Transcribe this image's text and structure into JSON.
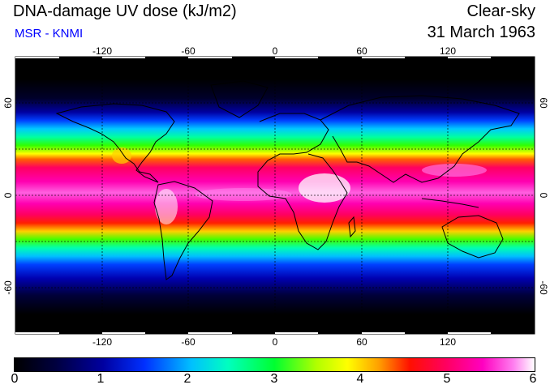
{
  "header": {
    "title": "DNA-damage UV dose (kJ/m2)",
    "subtitle": "MSR - KNMI",
    "sky_condition": "Clear-sky",
    "date": "31 March 1963"
  },
  "map": {
    "lon_ticks": [
      -120,
      -60,
      0,
      60,
      120
    ],
    "lon_labels": [
      "-120",
      "-60",
      "0",
      "60",
      "120"
    ],
    "lat_ticks": [
      60,
      0,
      -60
    ],
    "lat_labels": [
      "60",
      "0",
      "-60"
    ],
    "lon_range": [
      -180,
      180
    ],
    "lat_range": [
      -90,
      90
    ],
    "gridline_lats": [
      60,
      30,
      0,
      -30,
      -60
    ],
    "gridline_lons": [
      -120,
      -60,
      0,
      60,
      120
    ]
  },
  "colorbar": {
    "labels": [
      "0",
      "1",
      "2",
      "3",
      "4",
      "5",
      "6"
    ],
    "min": 0,
    "max": 6,
    "unit": "kJ/m2",
    "colors": [
      "#000000",
      "#000040",
      "#0000a0",
      "#0030ff",
      "#00c0ff",
      "#00ffc0",
      "#00ff30",
      "#b0ff00",
      "#ffff00",
      "#ffa000",
      "#ff1000",
      "#ff0060",
      "#ff00c0",
      "#ff80f0",
      "#ffffff"
    ]
  }
}
